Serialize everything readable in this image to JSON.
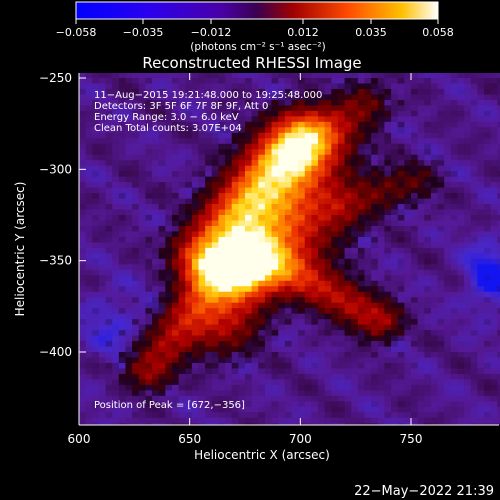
{
  "colorbar": {
    "ticks": [
      "-0.058",
      "-0.035",
      "-0.012",
      "0.012",
      "0.035",
      "0.058"
    ],
    "unit_label": "(photons cm⁻² s⁻¹ asec⁻²)",
    "range": [
      -0.058,
      0.058
    ]
  },
  "chart_data": {
    "type": "heatmap",
    "title": "Reconstructed RHESSI Image",
    "xlabel": "Heliocentric X (arcsec)",
    "ylabel": "Heliocentric Y (arcsec)",
    "xlim": [
      600,
      790
    ],
    "ylim": [
      -440,
      -248
    ],
    "xticks": [
      600,
      650,
      700,
      750
    ],
    "yticks": [
      -250,
      -300,
      -350,
      -400
    ],
    "xtick_labels": [
      "600",
      "650",
      "700",
      "750"
    ],
    "ytick_labels": [
      "−250",
      "−300",
      "−350",
      "−400"
    ],
    "peak": [
      672,
      -356
    ],
    "blue_min": [
      786,
      -358
    ],
    "annotations": [
      "11−Aug−2015 19:21:48.000 to 19:25:48.000",
      "Detectors: 3F 5F 6F 7F 8F 9F, Att 0",
      "Energy Range: 3.0 − 6.0 keV",
      "Clean     Total counts: 3.07E+04",
      "Position of Peak = [672,−356]"
    ]
  },
  "footer": {
    "timestamp": "22−May−2022 21:39"
  }
}
